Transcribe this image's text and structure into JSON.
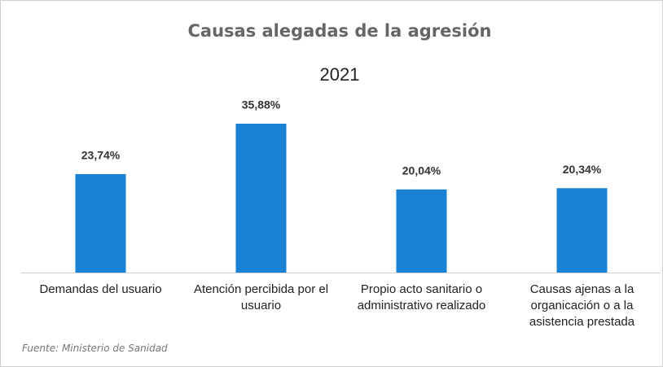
{
  "chart_data": {
    "type": "bar",
    "title": "Causas alegadas de la agresión",
    "subtitle": "2021",
    "categories": [
      "Demandas del usuario",
      "Atención percibida por el usuario",
      "Propio acto sanitario o administrativo realizado",
      "Causas ajenas a la organicación o a la asistencia prestada"
    ],
    "values": [
      23.74,
      35.88,
      20.04,
      20.34
    ],
    "value_labels": [
      "23,74%",
      "35,88%",
      "20,04%",
      "20,34%"
    ],
    "color": "#1a82d4",
    "source": "Fuente: Ministerio de Sanidad"
  }
}
